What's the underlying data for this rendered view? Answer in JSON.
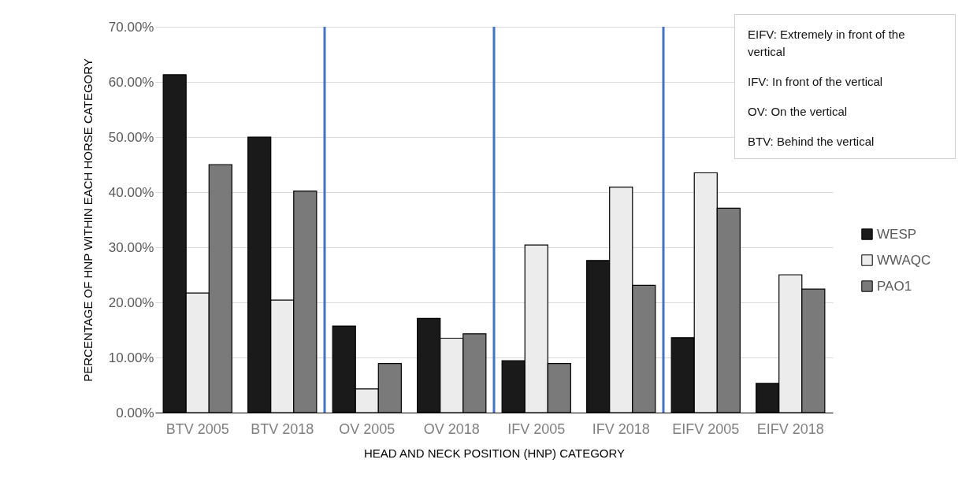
{
  "chart_data": {
    "type": "bar",
    "xlabel": "HEAD AND NECK POSITION (HNP) CATEGORY",
    "ylabel": "PERCENTAGE OF HNP WITHIN EACH HORSE CATEGORY",
    "categories": [
      "BTV 2005",
      "BTV 2018",
      "OV 2005",
      "OV 2018",
      "IFV 2005",
      "IFV 2018",
      "EIFV 2005",
      "EIFV 2018"
    ],
    "series": [
      {
        "name": "WESP",
        "color": "#1a1a1a",
        "values": [
          61.3,
          50.0,
          15.7,
          17.1,
          9.4,
          27.6,
          13.6,
          5.3
        ]
      },
      {
        "name": "WWAQC",
        "color": "#ececec",
        "values": [
          21.7,
          20.4,
          4.3,
          13.5,
          30.4,
          40.9,
          43.5,
          25.0
        ]
      },
      {
        "name": "PAO1",
        "color": "#7a7a7a",
        "values": [
          45.0,
          40.2,
          8.9,
          14.3,
          8.9,
          23.1,
          37.1,
          22.4
        ]
      }
    ],
    "ylim": [
      0,
      70
    ],
    "yticks": [
      {
        "value": 0,
        "label": "0.00%"
      },
      {
        "value": 10,
        "label": "10.00%"
      },
      {
        "value": 20,
        "label": "20.00%"
      },
      {
        "value": 30,
        "label": "30.00%"
      },
      {
        "value": 40,
        "label": "40.00%"
      },
      {
        "value": 50,
        "label": "50.00%"
      },
      {
        "value": 60,
        "label": "60.00%"
      },
      {
        "value": 70,
        "label": "70.00%"
      }
    ],
    "annotations": [
      "EIFV: Extremely in front of the vertical",
      "IFV: In front of the vertical",
      "OV: On the vertical",
      "BTV: Behind the vertical"
    ],
    "grid": "y",
    "legend": "right"
  }
}
